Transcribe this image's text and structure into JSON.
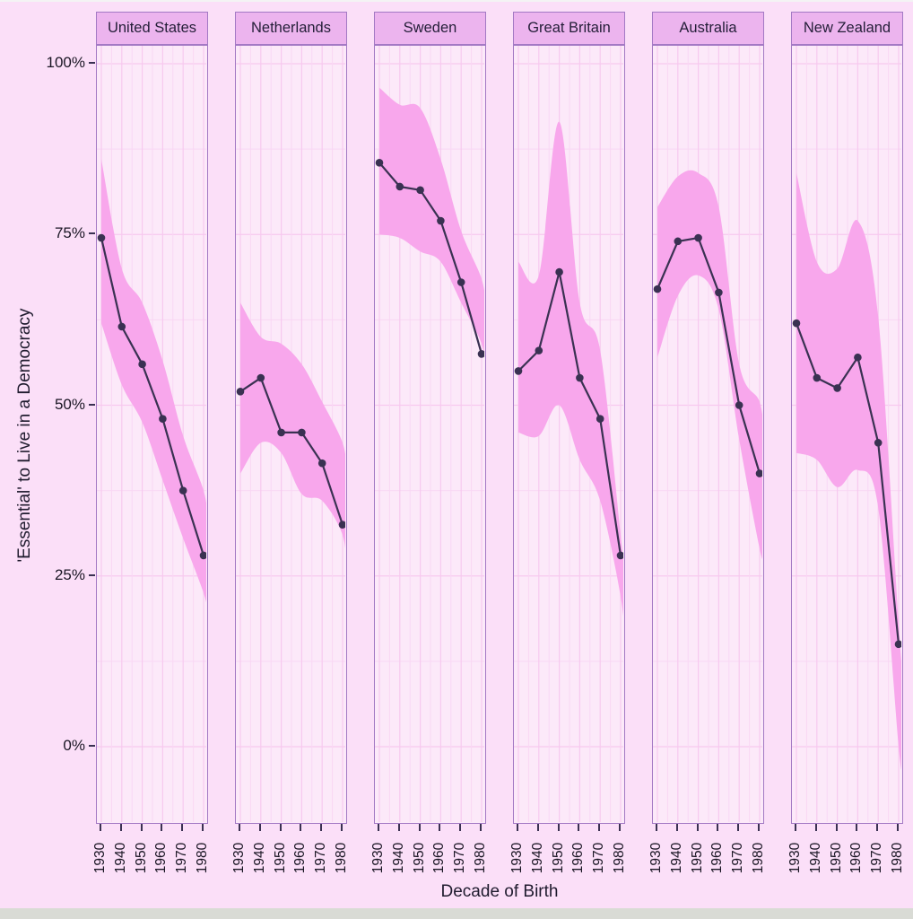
{
  "chart_data": {
    "type": "line",
    "title": "",
    "xlabel": "Decade of Birth",
    "ylabel": "'Essential' to Live in a Democracy",
    "x": [
      1930,
      1940,
      1950,
      1960,
      1970,
      1980
    ],
    "x_tick_labels": [
      "1930",
      "1940",
      "1950",
      "1960",
      "1970",
      "1980"
    ],
    "y_ticks": [
      {
        "label": "100%",
        "value": 100
      },
      {
        "label": "75%",
        "value": 75
      },
      {
        "label": "50%",
        "value": 50
      },
      {
        "label": "25%",
        "value": 25
      },
      {
        "label": "0%",
        "value": 0
      }
    ],
    "ylim": [
      -11,
      103
    ],
    "grid": "major and minor, both axes",
    "legend": "none",
    "facets": [
      {
        "label": "United States",
        "values": [
          74.5,
          61.5,
          56,
          48,
          37.5,
          28
        ],
        "band_upper": [
          86,
          70,
          65,
          56.5,
          45.5,
          37.5
        ],
        "band_lower": [
          62,
          53,
          47.5,
          39,
          30.5,
          22.5
        ],
        "band_tail": {
          "upper": 33,
          "lower": 19.5
        }
      },
      {
        "label": "Netherlands",
        "values": [
          52,
          54,
          46,
          46,
          41.5,
          32.5
        ],
        "band_upper": [
          65,
          60,
          59,
          56,
          50.5,
          44.5
        ],
        "band_lower": [
          40,
          44.5,
          43,
          37,
          36,
          31
        ],
        "band_tail": {
          "upper": 40,
          "lower": 25
        }
      },
      {
        "label": "Sweden",
        "values": [
          85.5,
          82,
          81.5,
          77,
          68,
          57.5
        ],
        "band_upper": [
          96.5,
          94,
          93.5,
          86,
          75.5,
          68.5
        ],
        "band_lower": [
          75,
          74.5,
          72.5,
          71,
          65,
          59
        ],
        "band_tail": {
          "upper": 64,
          "lower": 55
        }
      },
      {
        "label": "Great Britain",
        "values": [
          55,
          58,
          69.5,
          54,
          48,
          28
        ],
        "band_upper": [
          71,
          69,
          91.5,
          65,
          58,
          31
        ],
        "band_lower": [
          46,
          45.5,
          50,
          42,
          36,
          22
        ],
        "band_tail": {
          "upper": 25,
          "lower": 15
        }
      },
      {
        "label": "Australia",
        "values": [
          67,
          74,
          74.5,
          66.5,
          50,
          40
        ],
        "band_upper": [
          79,
          83.5,
          84,
          79,
          56,
          50.5
        ],
        "band_lower": [
          57,
          66,
          69,
          64,
          45,
          29
        ],
        "band_tail": {
          "upper": 45,
          "lower": 27.5
        }
      },
      {
        "label": "New Zealand",
        "values": [
          62,
          54,
          52.5,
          57,
          44.5,
          15
        ],
        "band_upper": [
          84,
          71,
          70,
          77,
          63,
          18
        ],
        "band_lower": [
          43,
          42,
          38,
          40.5,
          35,
          0
        ],
        "band_tail": {
          "upper": 10,
          "lower": -3
        }
      }
    ],
    "colors": {
      "page_bg": "#fbdff8",
      "panel_bg": "#fce9f9",
      "strip_bg": "#ecb4ee",
      "border": "#a379c4",
      "grid_major": "#f7c9ef",
      "grid_minor": "#f9d7f4",
      "ribbon": "#f8a7ec",
      "line": "#3a3152",
      "text": "#1f1b2e",
      "top_edge": "#f4f3f4",
      "bottom_edge": "#d9dbd5"
    }
  }
}
